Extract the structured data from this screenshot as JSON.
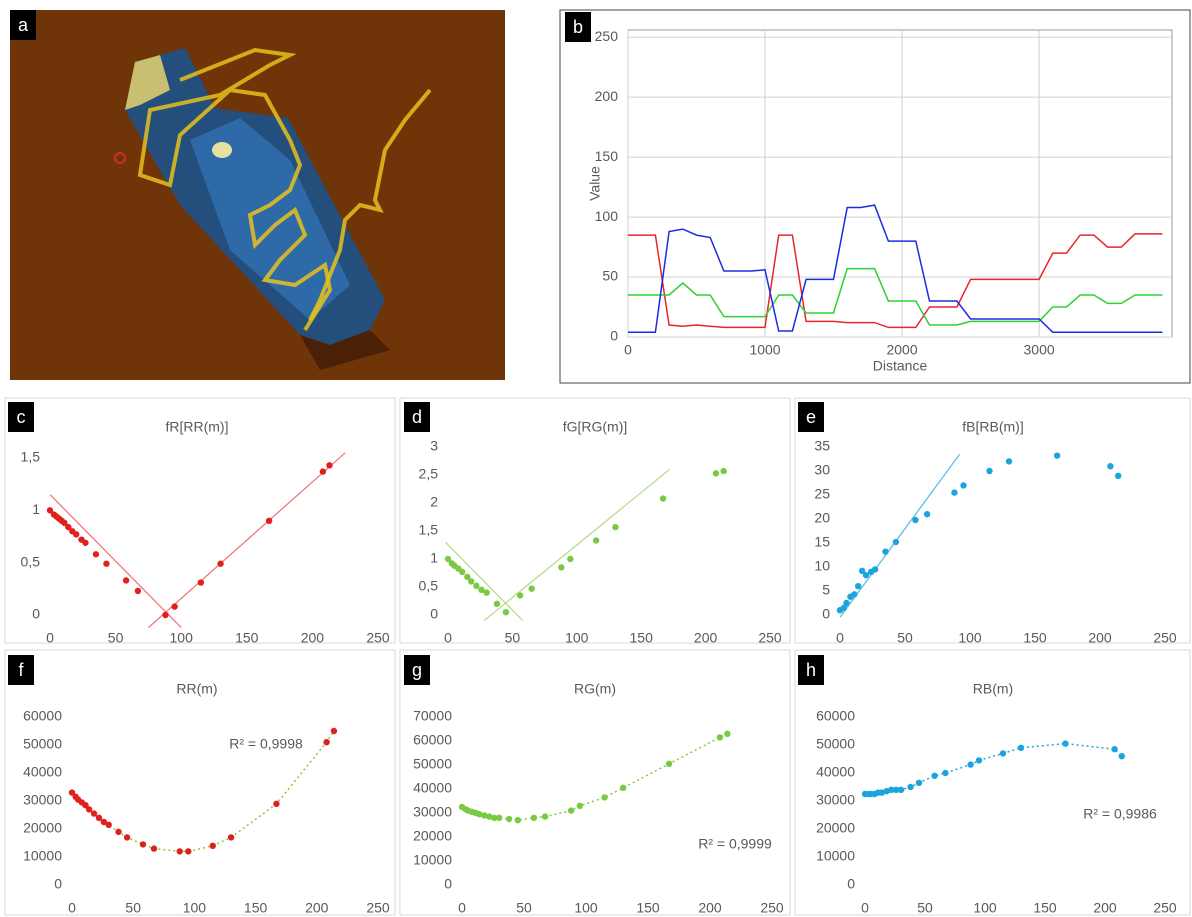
{
  "chart_data": [
    {
      "type": "image",
      "panel": "a"
    },
    {
      "type": "line",
      "panel": "b",
      "xlabel": "Distance",
      "ylabel": "Value",
      "grid": true,
      "x": [
        0,
        100,
        200,
        300,
        400,
        500,
        600,
        700,
        800,
        900,
        1000,
        1100,
        1200,
        1300,
        1400,
        1500,
        1600,
        1700,
        1800,
        1900,
        2000,
        2100,
        2200,
        2300,
        2400,
        2500,
        2600,
        2700,
        2800,
        2900,
        3000,
        3100,
        3200,
        3300,
        3400,
        3500,
        3600,
        3700,
        3800,
        3900
      ],
      "xlim": [
        0,
        3970
      ],
      "xticks": [
        0,
        1000,
        2000,
        3000
      ],
      "ylim": [
        0,
        256
      ],
      "yticks": [
        0,
        50,
        100,
        150,
        200,
        250
      ],
      "series": [
        {
          "color": "#e8262a",
          "values": [
            85,
            85,
            85,
            10,
            9,
            10,
            9,
            8,
            8,
            8,
            8,
            85,
            85,
            13,
            13,
            13,
            12,
            12,
            12,
            8,
            8,
            8,
            25,
            25,
            25,
            48,
            48,
            48,
            48,
            48,
            48,
            70,
            70,
            85,
            85,
            75,
            75,
            86,
            86,
            86
          ]
        },
        {
          "color": "#2fd02f",
          "values": [
            35,
            35,
            35,
            35,
            45,
            35,
            35,
            17,
            17,
            17,
            17,
            35,
            35,
            20,
            20,
            20,
            57,
            57,
            57,
            30,
            30,
            30,
            10,
            10,
            10,
            13,
            13,
            13,
            13,
            13,
            13,
            25,
            25,
            35,
            35,
            28,
            28,
            35,
            35,
            35
          ]
        },
        {
          "color": "#1a2ee0",
          "values": [
            4,
            4,
            4,
            88,
            90,
            85,
            83,
            55,
            55,
            55,
            56,
            5,
            5,
            48,
            48,
            48,
            108,
            108,
            110,
            80,
            80,
            80,
            30,
            30,
            30,
            15,
            15,
            15,
            15,
            15,
            15,
            4,
            4,
            4,
            4,
            4,
            4,
            4,
            4,
            4
          ]
        }
      ]
    },
    {
      "type": "scatter",
      "panel": "c",
      "title": "fR[RR(m)]",
      "xlim": [
        0,
        250
      ],
      "xticks": [
        0,
        50,
        100,
        150,
        200,
        250
      ],
      "ylim": [
        0,
        1.5
      ],
      "yticks": [
        0,
        {
          "value": 0.5,
          "label": "0,5"
        },
        1,
        {
          "value": 1.5,
          "label": "1,5"
        }
      ],
      "x": [
        0,
        3,
        5,
        7,
        9,
        11,
        14,
        17,
        20,
        24,
        27,
        35,
        43,
        58,
        67,
        88,
        95,
        115,
        130,
        167,
        208,
        213
      ],
      "series": [
        {
          "color": "#e0201c",
          "values": [
            1,
            0.96,
            0.94,
            0.92,
            0.9,
            0.88,
            0.84,
            0.8,
            0.77,
            0.72,
            0.69,
            0.58,
            0.49,
            0.33,
            0.23,
            0,
            0.08,
            0.31,
            0.49,
            0.9,
            1.37,
            1.43
          ]
        }
      ],
      "trend_color": "#f07a7a",
      "trendlines": [
        {
          "x": [
            0,
            100
          ],
          "y": [
            1.15,
            -0.12
          ]
        },
        {
          "x": [
            75,
            225
          ],
          "y": [
            -0.12,
            1.55
          ]
        }
      ]
    },
    {
      "type": "scatter",
      "panel": "d",
      "title": "fG[RG(m)]",
      "xlim": [
        0,
        250
      ],
      "xticks": [
        0,
        50,
        100,
        150,
        200,
        250
      ],
      "ylim": [
        0,
        3
      ],
      "yticks": [
        0,
        {
          "value": 0.5,
          "label": "0,5"
        },
        1,
        {
          "value": 1.5,
          "label": "1,5"
        },
        2,
        {
          "value": 2.5,
          "label": "2,5"
        },
        3
      ],
      "x": [
        0,
        3,
        5,
        8,
        11,
        15,
        18,
        22,
        26,
        30,
        38,
        45,
        56,
        65,
        88,
        95,
        115,
        130,
        167,
        208,
        214
      ],
      "series": [
        {
          "color": "#7ac943",
          "values": [
            1,
            0.92,
            0.88,
            0.83,
            0.77,
            0.68,
            0.6,
            0.52,
            0.45,
            0.4,
            0.2,
            0.05,
            0.35,
            0.47,
            0.85,
            1,
            1.33,
            1.57,
            2.08,
            2.53,
            2.57
          ]
        }
      ],
      "trend_color": "#b9dc90",
      "trendlines": [
        {
          "x": [
            -2,
            58
          ],
          "y": [
            1.3,
            -0.1
          ]
        },
        {
          "x": [
            28,
            172
          ],
          "y": [
            -0.1,
            2.6
          ]
        }
      ]
    },
    {
      "type": "scatter",
      "panel": "e",
      "title": "fB[RB(m)]",
      "xlim": [
        0,
        250
      ],
      "xticks": [
        0,
        50,
        100,
        150,
        200,
        250
      ],
      "ylim": [
        0,
        35
      ],
      "yticks": [
        0,
        5,
        10,
        15,
        20,
        25,
        30,
        35
      ],
      "x": [
        0,
        3,
        5,
        8,
        11,
        14,
        17,
        20,
        24,
        27,
        35,
        43,
        58,
        67,
        88,
        95,
        115,
        130,
        167,
        208,
        214
      ],
      "series": [
        {
          "color": "#1ca4dc",
          "values": [
            1,
            1.5,
            2.5,
            3.8,
            4.3,
            6,
            9.2,
            8.3,
            9,
            9.5,
            13.2,
            15.2,
            19.8,
            21,
            25.5,
            27,
            30,
            32,
            33.2,
            31,
            29
          ]
        }
      ],
      "trend_color": "#5bc0e8",
      "trendlines": [
        {
          "x": [
            0,
            92
          ],
          "y": [
            -0.5,
            33.5
          ]
        }
      ]
    },
    {
      "type": "scatter",
      "panel": "f",
      "title": "RR(m)",
      "annotation": "R² = 0,9998",
      "trendline": true,
      "trend_color": "#8cc63f",
      "xlim": [
        0,
        250
      ],
      "xticks": [
        0,
        50,
        100,
        150,
        200,
        250
      ],
      "ylim": [
        0,
        60000
      ],
      "yticks": [
        0,
        10000,
        20000,
        30000,
        40000,
        50000,
        60000
      ],
      "x": [
        0,
        3,
        5,
        8,
        11,
        14,
        18,
        22,
        26,
        30,
        38,
        45,
        58,
        67,
        88,
        95,
        115,
        130,
        167,
        208,
        214
      ],
      "series": [
        {
          "color": "#e0201c",
          "values": [
            33000,
            31500,
            30500,
            29500,
            28500,
            27000,
            25500,
            24000,
            22500,
            21500,
            19000,
            17000,
            14500,
            13000,
            12000,
            12000,
            14000,
            17000,
            29000,
            51000,
            55000
          ]
        }
      ]
    },
    {
      "type": "scatter",
      "panel": "g",
      "title": "RG(m)",
      "annotation": "R² = 0,9999",
      "trendline": true,
      "trend_color": "#8cc63f",
      "xlim": [
        0,
        250
      ],
      "xticks": [
        0,
        50,
        100,
        150,
        200,
        250
      ],
      "ylim": [
        0,
        70000
      ],
      "yticks": [
        0,
        10000,
        20000,
        30000,
        40000,
        50000,
        60000,
        70000
      ],
      "x": [
        0,
        3,
        5,
        8,
        11,
        14,
        18,
        22,
        26,
        30,
        38,
        45,
        58,
        67,
        88,
        95,
        115,
        130,
        167,
        208,
        214
      ],
      "series": [
        {
          "color": "#7ac943",
          "values": [
            32500,
            31500,
            31000,
            30500,
            30000,
            29500,
            29000,
            28500,
            28000,
            28000,
            27500,
            27000,
            28000,
            28500,
            31000,
            33000,
            36500,
            40500,
            50500,
            61500,
            63000
          ]
        }
      ]
    },
    {
      "type": "scatter",
      "panel": "h",
      "title": "RB(m)",
      "annotation": "R² = 0,9986",
      "trendline": true,
      "trend_color": "#1ca4dc",
      "xlim": [
        0,
        250
      ],
      "xticks": [
        0,
        50,
        100,
        150,
        200,
        250
      ],
      "ylim": [
        0,
        60000
      ],
      "yticks": [
        0,
        10000,
        20000,
        30000,
        40000,
        50000,
        60000
      ],
      "x": [
        0,
        3,
        5,
        8,
        11,
        14,
        18,
        22,
        26,
        30,
        38,
        45,
        58,
        67,
        88,
        95,
        115,
        130,
        167,
        208,
        214
      ],
      "series": [
        {
          "color": "#1ca4dc",
          "values": [
            32500,
            32500,
            32500,
            32500,
            33000,
            33000,
            33500,
            34000,
            34000,
            34000,
            35000,
            36500,
            39000,
            40000,
            43000,
            44500,
            47000,
            49000,
            50500,
            48500,
            46000
          ]
        }
      ]
    }
  ]
}
